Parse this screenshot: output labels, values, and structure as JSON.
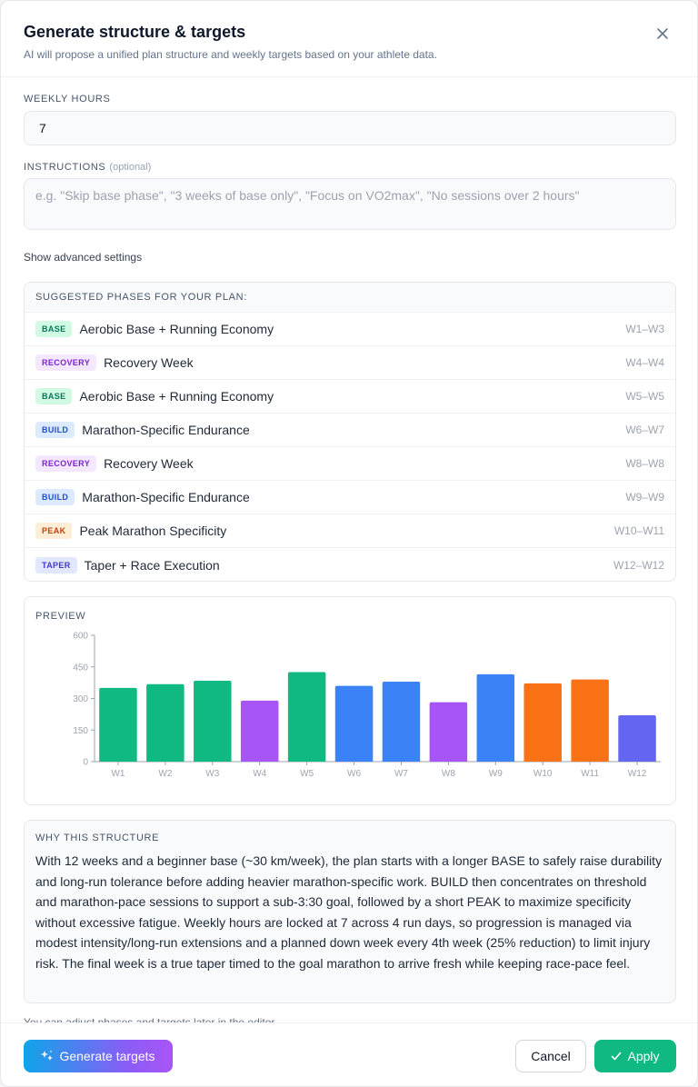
{
  "header": {
    "title": "Generate structure & targets",
    "subtitle": "AI will propose a unified plan structure and weekly targets based on your athlete data.",
    "close_icon": "close-icon"
  },
  "weekly_hours": {
    "label": "WEEKLY HOURS",
    "value": "7"
  },
  "instructions": {
    "label": "INSTRUCTIONS",
    "optional_label": "(optional)",
    "value": "",
    "placeholder": "e.g. \"Skip base phase\", \"3 weeks of base only\", \"Focus on VO2max\", \"No sessions over 2 hours\""
  },
  "advanced_link": "Show advanced settings",
  "phases": {
    "title": "SUGGESTED PHASES FOR YOUR PLAN:",
    "items": [
      {
        "badge": "BASE",
        "name": "Aerobic Base + Running Economy",
        "range": "W1–W3"
      },
      {
        "badge": "RECOVERY",
        "name": "Recovery Week",
        "range": "W4–W4"
      },
      {
        "badge": "BASE",
        "name": "Aerobic Base + Running Economy",
        "range": "W5–W5"
      },
      {
        "badge": "BUILD",
        "name": "Marathon-Specific Endurance",
        "range": "W6–W7"
      },
      {
        "badge": "RECOVERY",
        "name": "Recovery Week",
        "range": "W8–W8"
      },
      {
        "badge": "BUILD",
        "name": "Marathon-Specific Endurance",
        "range": "W9–W9"
      },
      {
        "badge": "PEAK",
        "name": "Peak Marathon Specificity",
        "range": "W10–W11"
      },
      {
        "badge": "TAPER",
        "name": "Taper + Race Execution",
        "range": "W12–W12"
      }
    ]
  },
  "badge_colors": {
    "BASE": {
      "bg": "#d1fae5",
      "fg": "#047857"
    },
    "RECOVERY": {
      "bg": "#f3e8ff",
      "fg": "#7e22ce"
    },
    "BUILD": {
      "bg": "#dbeafe",
      "fg": "#1d4ed8"
    },
    "PEAK": {
      "bg": "#ffedd5",
      "fg": "#c2410c"
    },
    "TAPER": {
      "bg": "#e0e7ff",
      "fg": "#4338ca"
    }
  },
  "preview": {
    "title": "PREVIEW"
  },
  "chart_data": {
    "type": "bar",
    "categories": [
      "W1",
      "W2",
      "W3",
      "W4",
      "W5",
      "W6",
      "W7",
      "W8",
      "W9",
      "W10",
      "W11",
      "W12"
    ],
    "values": [
      350,
      368,
      384,
      290,
      425,
      360,
      380,
      282,
      415,
      372,
      390,
      220
    ],
    "phases": [
      "BASE",
      "BASE",
      "BASE",
      "RECOVERY",
      "BASE",
      "BUILD",
      "BUILD",
      "RECOVERY",
      "BUILD",
      "PEAK",
      "PEAK",
      "TAPER"
    ],
    "phase_colors": {
      "BASE": "#10b981",
      "RECOVERY": "#a855f7",
      "BUILD": "#3b82f6",
      "PEAK": "#f97316",
      "TAPER": "#6366f1"
    },
    "ylim": [
      0,
      600
    ],
    "yticks": [
      0,
      150,
      300,
      450,
      600
    ],
    "title": "",
    "xlabel": "",
    "ylabel": "",
    "grid": false
  },
  "why": {
    "title": "WHY THIS STRUCTURE",
    "text": "With 12 weeks and a beginner base (~30 km/week), the plan starts with a longer BASE to safely raise durability and long-run tolerance before adding heavier marathon-specific work. BUILD then concentrates on threshold and marathon-pace sessions to support a sub-3:30 goal, followed by a short PEAK to maximize specificity without excessive fatigue. Weekly hours are locked at 7 across 4 run days, so progression is managed via modest intensity/long-run extensions and a planned down week every 4th week (25% reduction) to limit injury risk. The final week is a true taper timed to the goal marathon to arrive fresh while keeping race-pace feel."
  },
  "partial_note": "You can adjust phases and targets later in the editor.",
  "footer": {
    "generate_label": "Generate targets",
    "cancel_label": "Cancel",
    "apply_label": "Apply"
  }
}
